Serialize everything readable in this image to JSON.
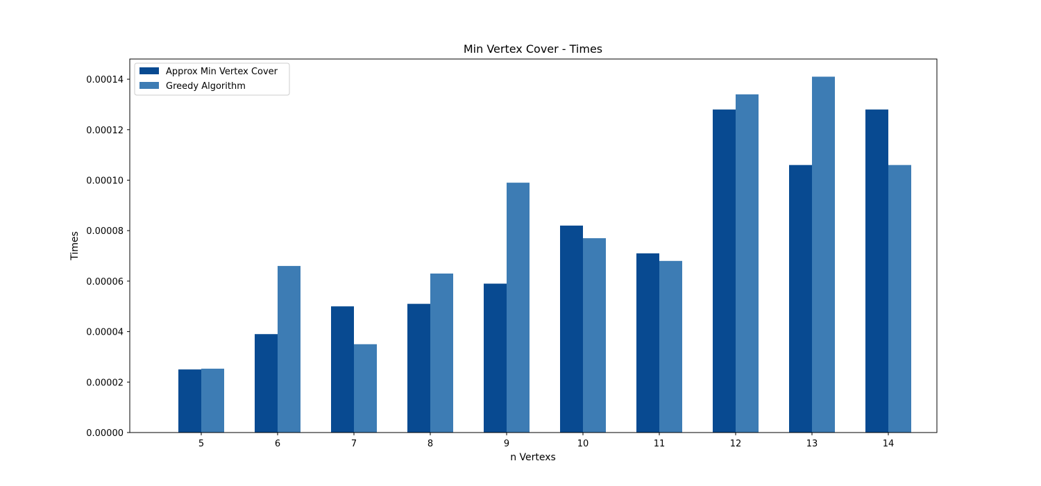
{
  "chart_data": {
    "type": "bar",
    "title": "Min Vertex Cover - Times",
    "xlabel": "n Vertexs",
    "ylabel": "Times",
    "categories": [
      "5",
      "6",
      "7",
      "8",
      "9",
      "10",
      "11",
      "12",
      "13",
      "14"
    ],
    "series": [
      {
        "name": "Approx Min Vertex Cover",
        "color": "#084a91",
        "values": [
          2.5e-05,
          3.9e-05,
          5e-05,
          5.1e-05,
          5.9e-05,
          8.2e-05,
          7.1e-05,
          0.000128,
          0.000106,
          0.000128
        ]
      },
      {
        "name": "Greedy Algorithm",
        "color": "#3d7cb4",
        "values": [
          2.53e-05,
          6.6e-05,
          3.5e-05,
          6.3e-05,
          9.9e-05,
          7.7e-05,
          6.8e-05,
          0.000134,
          0.000141,
          0.000106
        ]
      }
    ],
    "yticks": [
      "0.00000",
      "0.00002",
      "0.00004",
      "0.00006",
      "0.00008",
      "0.00010",
      "0.00012",
      "0.00014"
    ],
    "ylim": [
      0,
      0.000148
    ],
    "grid": false,
    "legend_position": "top-left"
  }
}
